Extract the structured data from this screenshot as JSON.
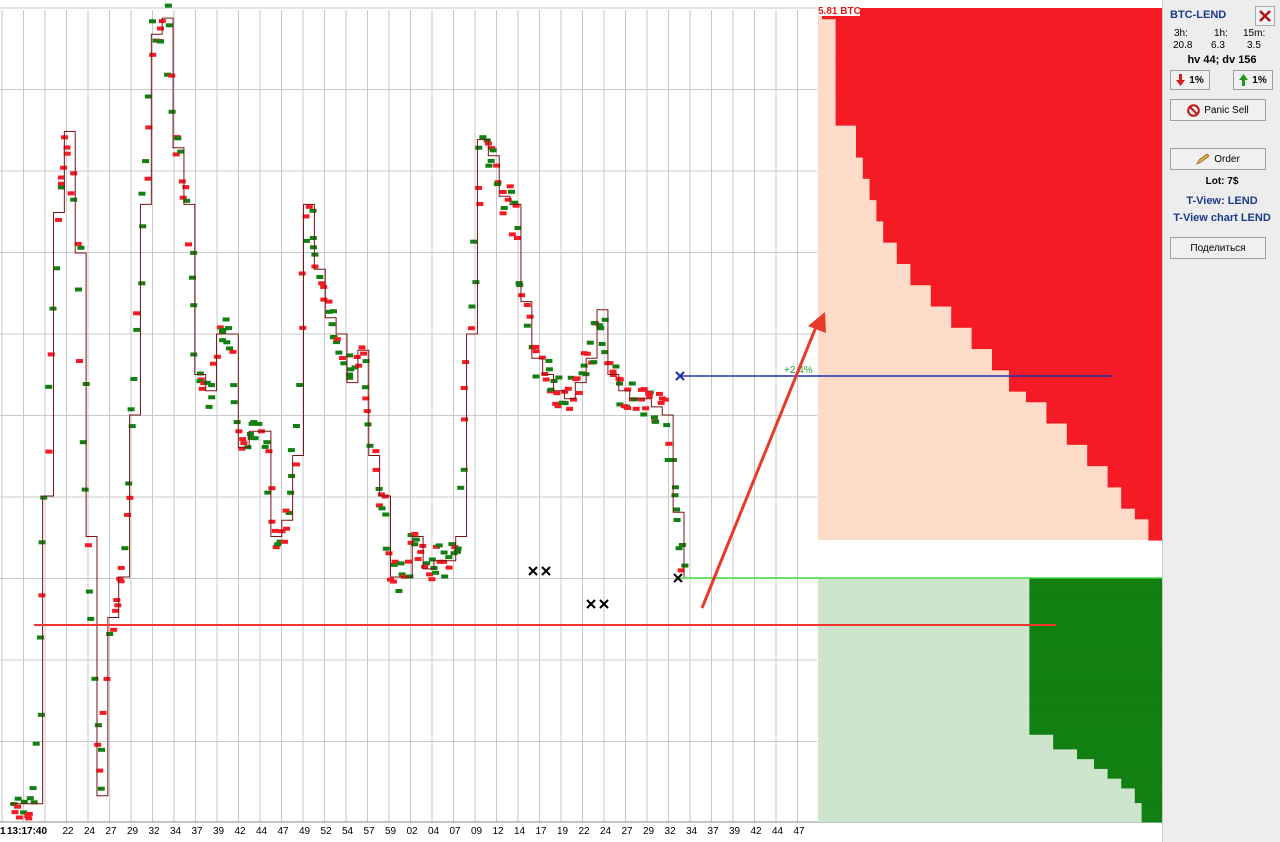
{
  "panel": {
    "pair": "BTC-LEND",
    "stats": [
      {
        "label": "3h:",
        "value": "20.8"
      },
      {
        "label": "1h:",
        "value": "6.3"
      },
      {
        "label": "15m:",
        "value": "3.5"
      }
    ],
    "hv_dv": "hv 44; dv 156",
    "down_btn": "1%",
    "up_btn": "1%",
    "panic_sell": "Panic Sell",
    "order": "Order",
    "lot": "Lot: 7$",
    "tview": "T-View: LEND",
    "tview_chart": "T-View chart LEND",
    "share": "Поделиться"
  },
  "chart": {
    "volume_label": "5.81 BTC",
    "percent_label": "+2.4%",
    "start_time": "13:17:40",
    "start_prefix": "1",
    "xticks": [
      "22",
      "24",
      "27",
      "29",
      "32",
      "34",
      "37",
      "39",
      "42",
      "44",
      "47",
      "49",
      "52",
      "54",
      "57",
      "59",
      "02",
      "04",
      "07",
      "09",
      "12",
      "14",
      "17",
      "19",
      "22",
      "24",
      "27",
      "29",
      "32",
      "34",
      "37",
      "39",
      "42",
      "44",
      "47"
    ]
  },
  "colors": {
    "sell": "#f51b24",
    "buy": "#127f12",
    "sell_light": "#fcdcc8",
    "buy_light": "#cde5cd",
    "price": "#7a1414",
    "target": "#1f2fb0",
    "grid": "#c8c8c8"
  },
  "chart_data": {
    "type": "line",
    "series": [
      {
        "values": [
          0.02,
          0.02,
          0.02,
          0.4,
          0.75,
          0.85,
          0.7,
          0.35,
          0.03,
          0.25,
          0.3,
          0.5,
          0.76,
          0.97,
          0.99,
          0.83,
          0.76,
          0.55,
          0.53,
          0.6,
          0.6,
          0.46,
          0.48,
          0.48,
          0.35,
          0.37,
          0.45,
          0.76,
          0.68,
          0.62,
          0.6,
          0.54,
          0.58,
          0.45,
          0.4,
          0.3,
          0.3,
          0.35,
          0.31,
          0.32,
          0.32,
          0.35,
          0.6,
          0.84,
          0.82,
          0.77,
          0.76,
          0.64,
          0.57,
          0.55,
          0.53,
          0.52,
          0.54,
          0.57,
          0.63,
          0.55,
          0.53,
          0.52,
          0.52,
          0.51,
          0.5,
          0.38,
          0.3
        ]
      }
    ],
    "sell_depth": [
      1,
      0.96,
      0.96,
      0.96,
      0.96,
      0.96,
      0.96,
      0.96,
      0.96,
      0.96,
      0.96,
      0.9,
      0.9,
      0.9,
      0.88,
      0.88,
      0.86,
      0.86,
      0.84,
      0.84,
      0.82,
      0.82,
      0.78,
      0.78,
      0.74,
      0.74,
      0.68,
      0.68,
      0.62,
      0.62,
      0.56,
      0.56,
      0.5,
      0.5,
      0.45,
      0.45,
      0.4,
      0.34,
      0.34,
      0.28,
      0.28,
      0.22,
      0.22,
      0.16,
      0.16,
      0.12,
      0.12,
      0.08,
      0.04,
      0.04
    ],
    "buy_depth": [
      0.06,
      0.06,
      0.06,
      0.06,
      0.08,
      0.08,
      0.08,
      0.12,
      0.12,
      0.16,
      0.16,
      0.2,
      0.2,
      0.25,
      0.25,
      0.32,
      0.32,
      0.32,
      0.39,
      0.39,
      0.39,
      0.39,
      0.39,
      0.39,
      0.39,
      0.39,
      0.39,
      0.39,
      0.39,
      0.39,
      0.39,
      0.39,
      0.39,
      0.39,
      0.39,
      0.39,
      0.39,
      0.39,
      0.39,
      0.39,
      0.39,
      0.39,
      0.39,
      0.39,
      0.39,
      0.39,
      0.39,
      0.39,
      0.39,
      0.39
    ]
  }
}
